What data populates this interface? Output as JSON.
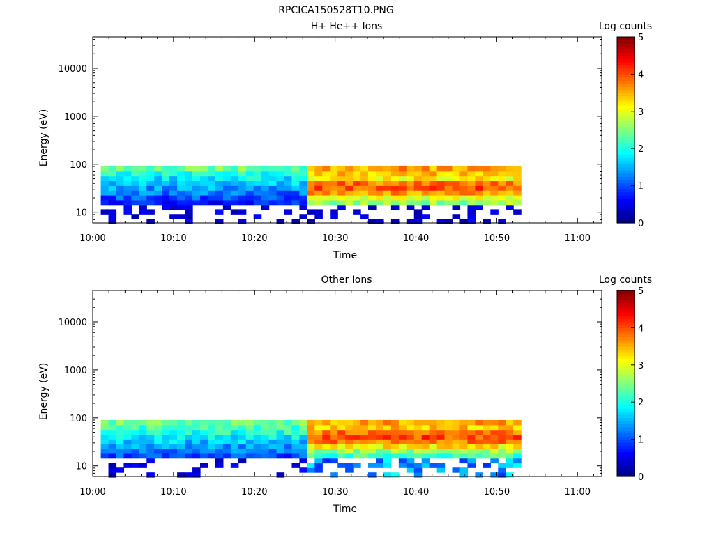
{
  "figure_title": "RPCICA150528T10.PNG",
  "chart_data": [
    {
      "type": "heatmap",
      "title": "H+ He++ Ions",
      "xlabel": "Time",
      "ylabel": "Energy (eV)",
      "x_ticks": [
        "10:00",
        "10:10",
        "10:20",
        "10:30",
        "10:40",
        "10:50",
        "11:00"
      ],
      "xlim": [
        "10:00",
        "11:03"
      ],
      "y_scale": "log",
      "y_ticks": [
        "10",
        "100",
        "1000",
        "10000"
      ],
      "ylim": [
        6,
        45000
      ],
      "colorbar_label": "Log counts",
      "colorbar_ticks": [
        "0",
        "1",
        "2",
        "3",
        "4",
        "5"
      ],
      "colorbar_range": [
        0,
        5
      ],
      "colormap": "jet",
      "data_time_range": [
        "10:01",
        "10:53"
      ],
      "energy_bins_ev": [
        6.5,
        8.2,
        10.3,
        12.9,
        16.2,
        20.4,
        25.6,
        32.2,
        40.5,
        50.9,
        64.0,
        80.4
      ],
      "time_segments": [
        {
          "start": "10:01",
          "end": "10:26",
          "top_bins_log_counts": [
            2.4,
            2.0,
            1.8,
            1.6,
            1.4,
            1.2,
            1.0,
            0.8
          ],
          "note_low": "sparse"
        },
        {
          "start": "10:26",
          "end": "10:53",
          "top_bins_log_counts": [
            3.6,
            3.4,
            3.2,
            3.8,
            4.0,
            3.6,
            3.0,
            2.6
          ],
          "note_low": "sparse"
        }
      ]
    },
    {
      "type": "heatmap",
      "title": "Other Ions",
      "xlabel": "Time",
      "ylabel": "Energy (eV)",
      "x_ticks": [
        "10:00",
        "10:10",
        "10:20",
        "10:30",
        "10:40",
        "10:50",
        "11:00"
      ],
      "xlim": [
        "10:00",
        "11:03"
      ],
      "y_scale": "log",
      "y_ticks": [
        "10",
        "100",
        "1000",
        "10000"
      ],
      "ylim": [
        6,
        45000
      ],
      "colorbar_label": "Log counts",
      "colorbar_ticks": [
        "0",
        "1",
        "2",
        "3",
        "4",
        "5"
      ],
      "colorbar_range": [
        0,
        5
      ],
      "colormap": "jet",
      "data_time_range": [
        "10:01",
        "10:53"
      ],
      "energy_bins_ev": [
        6.5,
        8.2,
        10.3,
        12.9,
        16.2,
        20.4,
        25.6,
        32.2,
        40.5,
        50.9,
        64.0,
        80.4
      ],
      "time_segments": [
        {
          "start": "10:01",
          "end": "10:26",
          "top_bins_log_counts": [
            2.4,
            2.2,
            2.0,
            1.8,
            1.6,
            1.4,
            1.2,
            1.0
          ],
          "note_low": "sparse"
        },
        {
          "start": "10:26",
          "end": "10:53",
          "top_bins_log_counts": [
            3.6,
            3.4,
            3.8,
            4.0,
            3.8,
            3.2,
            2.6,
            2.2
          ],
          "note_low": "denser"
        }
      ]
    }
  ]
}
